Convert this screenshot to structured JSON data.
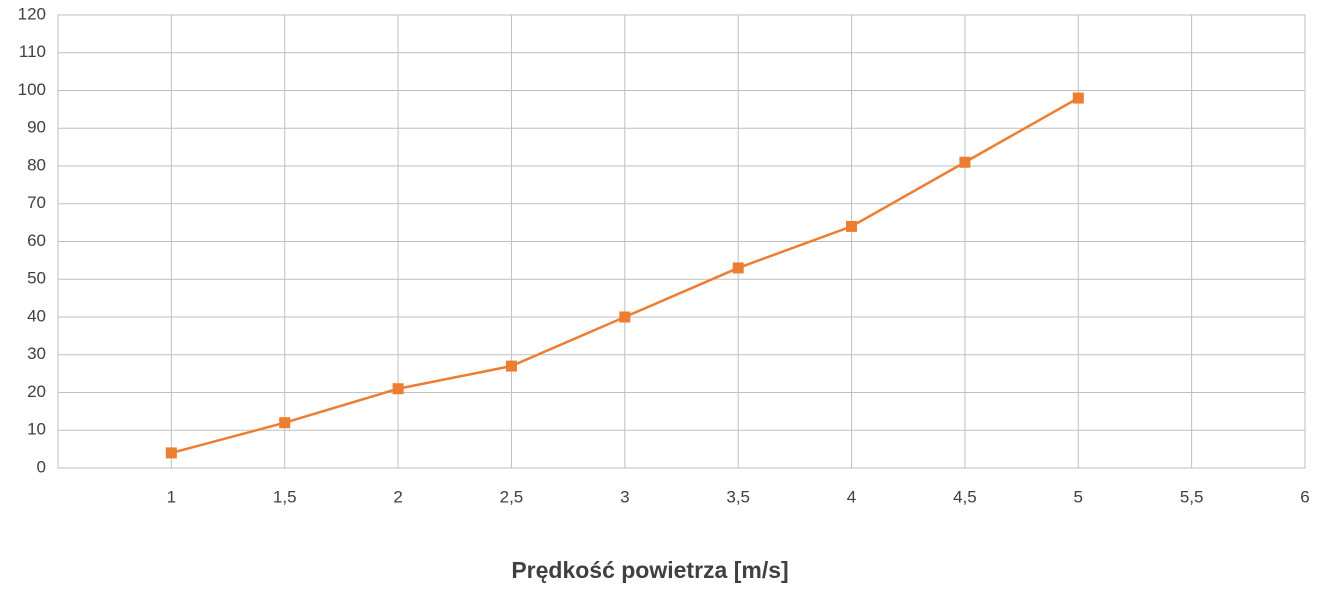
{
  "chart_data": {
    "type": "line",
    "xlabel": "Prędkość powietrza [m/s]",
    "x": [
      1,
      1.5,
      2,
      2.5,
      3,
      3.5,
      4,
      4.5,
      5
    ],
    "values": [
      4,
      12,
      21,
      27,
      40,
      53,
      64,
      81,
      98
    ],
    "color": "#ed7d31",
    "xlim": [
      0.5,
      6
    ],
    "xticks": [
      1,
      {
        "value": 1.5,
        "label": "1,5"
      },
      2,
      {
        "value": 2.5,
        "label": "2,5"
      },
      3,
      {
        "value": 3.5,
        "label": "3,5"
      },
      4,
      {
        "value": 4.5,
        "label": "4,5"
      },
      5,
      {
        "value": 5.5,
        "label": "5,5"
      },
      6
    ],
    "ylim": [
      0,
      120
    ],
    "yticks": [
      0,
      10,
      20,
      30,
      40,
      50,
      60,
      70,
      80,
      90,
      100,
      110,
      120
    ],
    "grid": true
  }
}
